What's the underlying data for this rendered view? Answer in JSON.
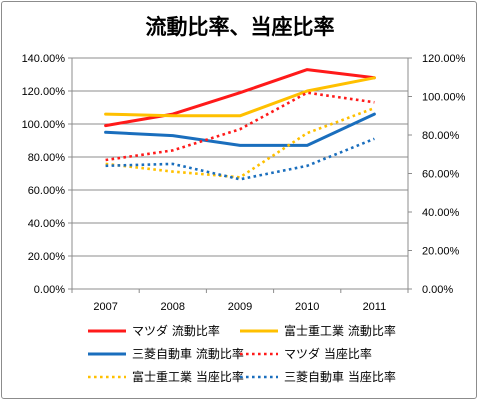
{
  "chart_data": {
    "type": "line",
    "title": "流動比率、当座比率",
    "categories": [
      "2007",
      "2008",
      "2009",
      "2010",
      "2011"
    ],
    "y_left": {
      "ylim": [
        0,
        140
      ],
      "ticks": [
        0,
        20,
        40,
        60,
        80,
        100,
        120,
        140
      ],
      "tick_labels": [
        "0.00%",
        "20.00%",
        "40.00%",
        "60.00%",
        "80.00%",
        "100.00%",
        "120.00%",
        "140.00%"
      ]
    },
    "y_right": {
      "ylim": [
        0,
        120
      ],
      "ticks": [
        0,
        20,
        40,
        60,
        80,
        100,
        120
      ],
      "tick_labels": [
        "0.00%",
        "20.00%",
        "40.00%",
        "60.00%",
        "80.00%",
        "100.00%",
        "120.00%"
      ]
    },
    "grid": true,
    "legend_position": "bottom",
    "series": [
      {
        "name": "マツダ 流動比率",
        "axis": "left",
        "style": "solid",
        "color": "#ff1a1a",
        "values": [
          99,
          106,
          119,
          133,
          128
        ]
      },
      {
        "name": "富士重工業 流動比率",
        "axis": "left",
        "style": "solid",
        "color": "#ffc000",
        "values": [
          106,
          105,
          105,
          120,
          128
        ]
      },
      {
        "name": "三菱自動車 流動比率",
        "axis": "left",
        "style": "solid",
        "color": "#1a6ebd",
        "values": [
          95,
          93,
          87,
          87,
          106
        ]
      },
      {
        "name": "マツダ 当座比率",
        "axis": "right",
        "style": "dotted",
        "color": "#ff1a1a",
        "values": [
          67,
          72,
          83,
          102,
          97
        ]
      },
      {
        "name": "富士重工業 当座比率",
        "axis": "right",
        "style": "dotted",
        "color": "#ffc000",
        "values": [
          65,
          61,
          58,
          81,
          94
        ]
      },
      {
        "name": "三菱自動車 当座比率",
        "axis": "right",
        "style": "dotted",
        "color": "#1a6ebd",
        "values": [
          64,
          65,
          57,
          64,
          78
        ]
      }
    ]
  }
}
